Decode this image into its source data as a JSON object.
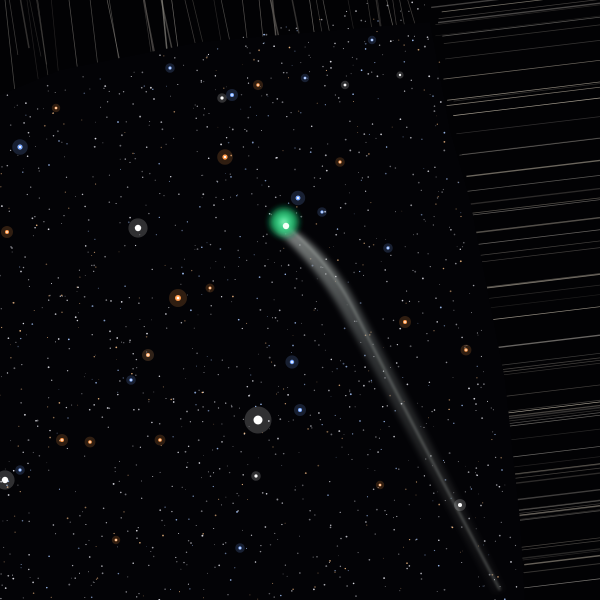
{
  "image": {
    "subject": "comet",
    "colors": {
      "sky": "#020204",
      "coma": "#2fe08a",
      "nucleus": "#f4fff6",
      "tail": "#b8c2c8",
      "streak": "#d8d2c6"
    }
  }
}
